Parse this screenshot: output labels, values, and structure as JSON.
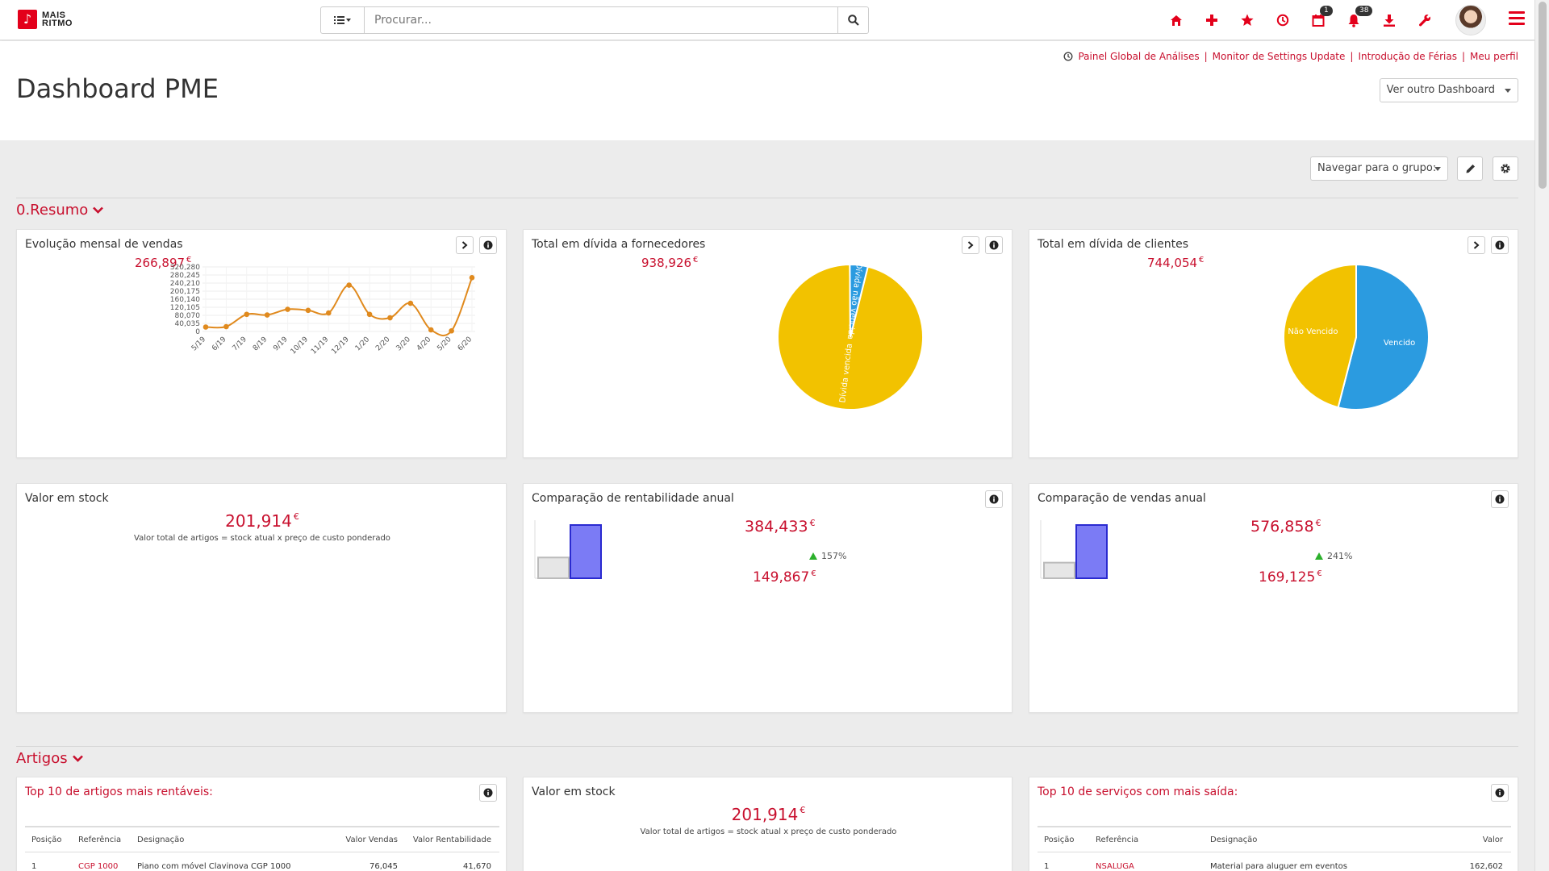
{
  "topbar": {
    "logo_line1": "MAIS",
    "logo_line2": "RITMO",
    "search_placeholder": "Procurar...",
    "icons": [
      "home-icon",
      "plus-icon",
      "star-icon",
      "clock-icon",
      "calendar-icon",
      "bell-icon",
      "download-icon",
      "wrench-icon"
    ],
    "calendar_badge": "1",
    "bell_badge": "38",
    "accent": "#e3001b"
  },
  "header": {
    "quick_links": [
      "Painel Global de Análises",
      "Monitor de Settings Update",
      "Introdução de Férias",
      "Meu perfil"
    ],
    "title": "Dashboard PME",
    "dashboard_select": "Ver outro Dashboard"
  },
  "toolbar": {
    "group_select": "Navegar para o grupo:"
  },
  "sections": {
    "resumo": "0.Resumo",
    "artigos": "Artigos"
  },
  "cards": {
    "monthly_sales": {
      "title": "Evolução mensal de vendas",
      "value": "266,897",
      "currency": "€"
    },
    "supplier_debt": {
      "title": "Total em dívida a fornecedores",
      "value": "938,926",
      "currency": "€"
    },
    "client_debt": {
      "title": "Total em dívida de clientes",
      "value": "744,054",
      "currency": "€"
    },
    "stock_value": {
      "title": "Valor em stock",
      "value": "201,914",
      "currency": "€",
      "note": "Valor total de artigos = stock atual x preço de custo ponderado"
    },
    "profit_compare": {
      "title": "Comparação de rentabilidade anual",
      "current": "384,433",
      "previous": "149,867",
      "change": "157%",
      "currency": "€"
    },
    "sales_compare": {
      "title": "Comparação de vendas anual",
      "current": "576,858",
      "previous": "169,125",
      "change": "241%",
      "currency": "€"
    },
    "top_articles": {
      "title": "Top 10 de artigos mais rentáveis:",
      "headers": [
        "Posição",
        "Referência",
        "Designação",
        "Valor Vendas",
        "Valor Rentabilidade"
      ],
      "rows": [
        {
          "pos": "1",
          "ref": "CGP 1000",
          "desc": "Piano com móvel Clavinova CGP 1000",
          "sales": "76,045",
          "profit": "41,670"
        }
      ]
    },
    "stock_value2": {
      "title": "Valor em stock",
      "value": "201,914",
      "currency": "€",
      "note": "Valor total de artigos = stock atual x preço de custo ponderado"
    },
    "top_services": {
      "title": "Top 10 de serviços com mais saída:",
      "headers": [
        "Posição",
        "Referência",
        "Designação",
        "Valor"
      ],
      "rows": [
        {
          "pos": "1",
          "ref": "NSALUGA",
          "desc": "Material para aluguer em eventos",
          "value": "162,602"
        }
      ]
    }
  },
  "chart_data": [
    {
      "type": "line",
      "x": [
        "5/19",
        "6/19",
        "7/19",
        "8/19",
        "9/19",
        "10/19",
        "11/19",
        "12/19",
        "1/20",
        "2/20",
        "3/20",
        "4/20",
        "5/20",
        "6/20"
      ],
      "values": [
        22000,
        24000,
        85000,
        82000,
        110000,
        105000,
        92000,
        230000,
        85000,
        68000,
        140000,
        8000,
        3000,
        266897
      ],
      "yticks": [
        "320,280",
        "280,245",
        "240,210",
        "200,175",
        "160,140",
        "120,105",
        "80,070",
        "40,035",
        "0"
      ],
      "ylim": [
        0,
        320280
      ],
      "color": "#e08a1e"
    },
    {
      "type": "pie",
      "labels": [
        "Dívida vencida",
        "Dívida não vencida"
      ],
      "values": [
        96,
        4
      ],
      "colors": [
        "#f2c200",
        "#2b9be0"
      ]
    },
    {
      "type": "pie",
      "labels": [
        "Vencido",
        "Não Vencido"
      ],
      "values": [
        54,
        46
      ],
      "colors": [
        "#2b9be0",
        "#f2c200"
      ]
    },
    {
      "type": "bar",
      "categories": [
        "previous",
        "current"
      ],
      "values": [
        149867,
        384433
      ],
      "colors": [
        "#e6e6e6",
        "#7b7bf5"
      ]
    },
    {
      "type": "bar",
      "categories": [
        "previous",
        "current"
      ],
      "values": [
        169125,
        576858
      ],
      "colors": [
        "#e6e6e6",
        "#7b7bf5"
      ]
    }
  ]
}
